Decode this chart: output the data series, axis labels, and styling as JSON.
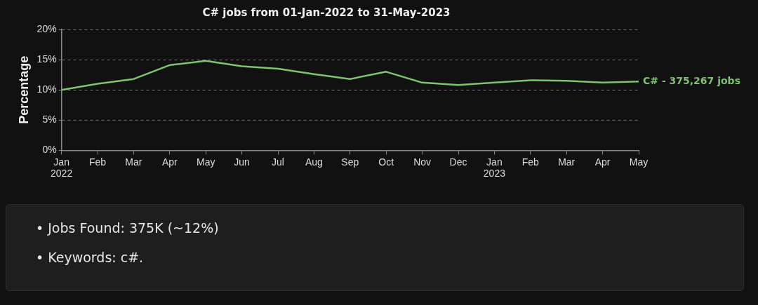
{
  "chart_data": {
    "type": "line",
    "title": "C# jobs from 01-Jan-2022 to 31-May-2023",
    "ylabel": "Percentage",
    "categories": [
      "Jan 2022",
      "Feb",
      "Mar",
      "Apr",
      "May",
      "Jun",
      "Jul",
      "Aug",
      "Sep",
      "Oct",
      "Nov",
      "Dec",
      "Jan 2023",
      "Feb",
      "Mar",
      "Apr",
      "May"
    ],
    "series": [
      {
        "name": "C# - 375,267 jobs",
        "color": "#7cc46e",
        "values": [
          10.0,
          11.0,
          11.8,
          14.1,
          14.8,
          13.9,
          13.5,
          12.6,
          11.8,
          13.0,
          11.2,
          10.8,
          11.2,
          11.6,
          11.5,
          11.2,
          11.4
        ]
      }
    ],
    "ylim": [
      0,
      20
    ],
    "yticks": [
      {
        "value": 0,
        "label": "0%"
      },
      {
        "value": 5,
        "label": "5%"
      },
      {
        "value": 10,
        "label": "10%"
      },
      {
        "value": 15,
        "label": "15%"
      },
      {
        "value": 20,
        "label": "20%"
      }
    ],
    "grid": "y",
    "legend": false,
    "marker": "none",
    "line_style": "solid",
    "annotations": [
      "• Jobs Found: 375K (~12%)",
      "• Keywords: c#."
    ]
  }
}
